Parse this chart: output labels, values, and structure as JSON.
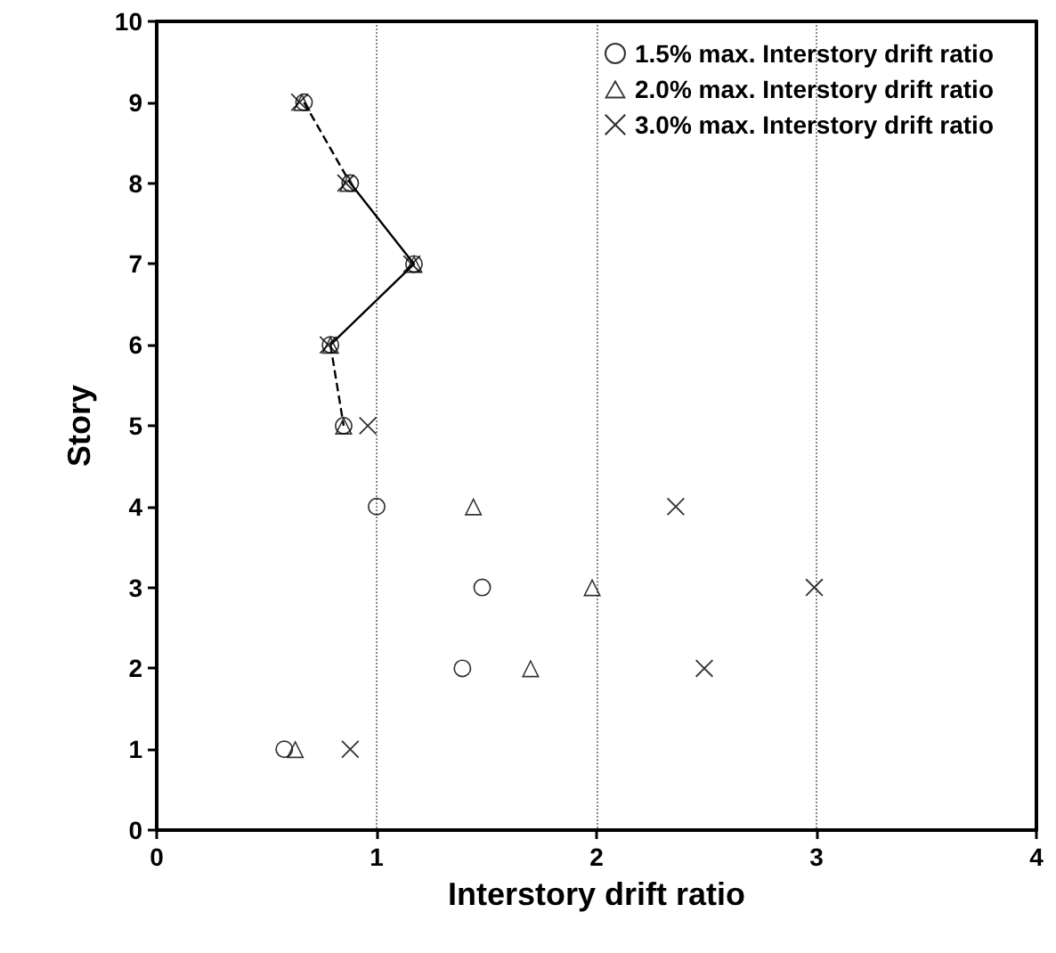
{
  "chart_data": {
    "type": "scatter",
    "xlabel": "Interstory drift ratio",
    "ylabel": "Story",
    "xlim": [
      0,
      4
    ],
    "xticks": [
      0,
      1,
      2,
      3,
      4
    ],
    "ylim": [
      0,
      10
    ],
    "yticks": [
      0,
      1,
      2,
      3,
      4,
      5,
      6,
      7,
      8,
      9,
      10
    ],
    "grid": "x",
    "legend": "top right",
    "series": [
      {
        "name": "1.5% max. Interstory drift ratio",
        "color": "#000000",
        "marker": "circle",
        "x": [
          0.58,
          1.39,
          1.48,
          1.0,
          0.85,
          0.79,
          1.17,
          0.88,
          0.67
        ],
        "values": [
          1,
          2,
          3,
          4,
          5,
          6,
          7,
          8,
          9
        ]
      },
      {
        "name": "2.0% max. Interstory drift ratio",
        "color": "#000000",
        "marker": "triangle",
        "x": [
          0.63,
          1.7,
          1.98,
          1.44,
          0.85,
          0.79,
          1.17,
          0.87,
          0.66
        ],
        "values": [
          1,
          2,
          3,
          4,
          5,
          6,
          7,
          8,
          9
        ]
      },
      {
        "name": "3.0% max. Interstory drift ratio",
        "color": "#000000",
        "marker": "cross",
        "x": [
          0.88,
          2.49,
          2.99,
          2.36,
          0.96,
          0.78,
          1.16,
          0.86,
          0.65
        ],
        "values": [
          1,
          2,
          3,
          4,
          5,
          6,
          7,
          8,
          9
        ]
      },
      {
        "type": "line",
        "color": "#000000",
        "line_style": "solid",
        "marker": "none",
        "x": [
          0.79,
          1.17,
          0.88
        ],
        "values": [
          6,
          7,
          8
        ]
      },
      {
        "type": "line",
        "color": "#000000",
        "line_style": "dashed",
        "marker": "none",
        "x": [
          0.67,
          0.88,
          null,
          0.79,
          0.85
        ],
        "values": [
          9,
          8,
          null,
          6,
          5
        ]
      }
    ]
  }
}
